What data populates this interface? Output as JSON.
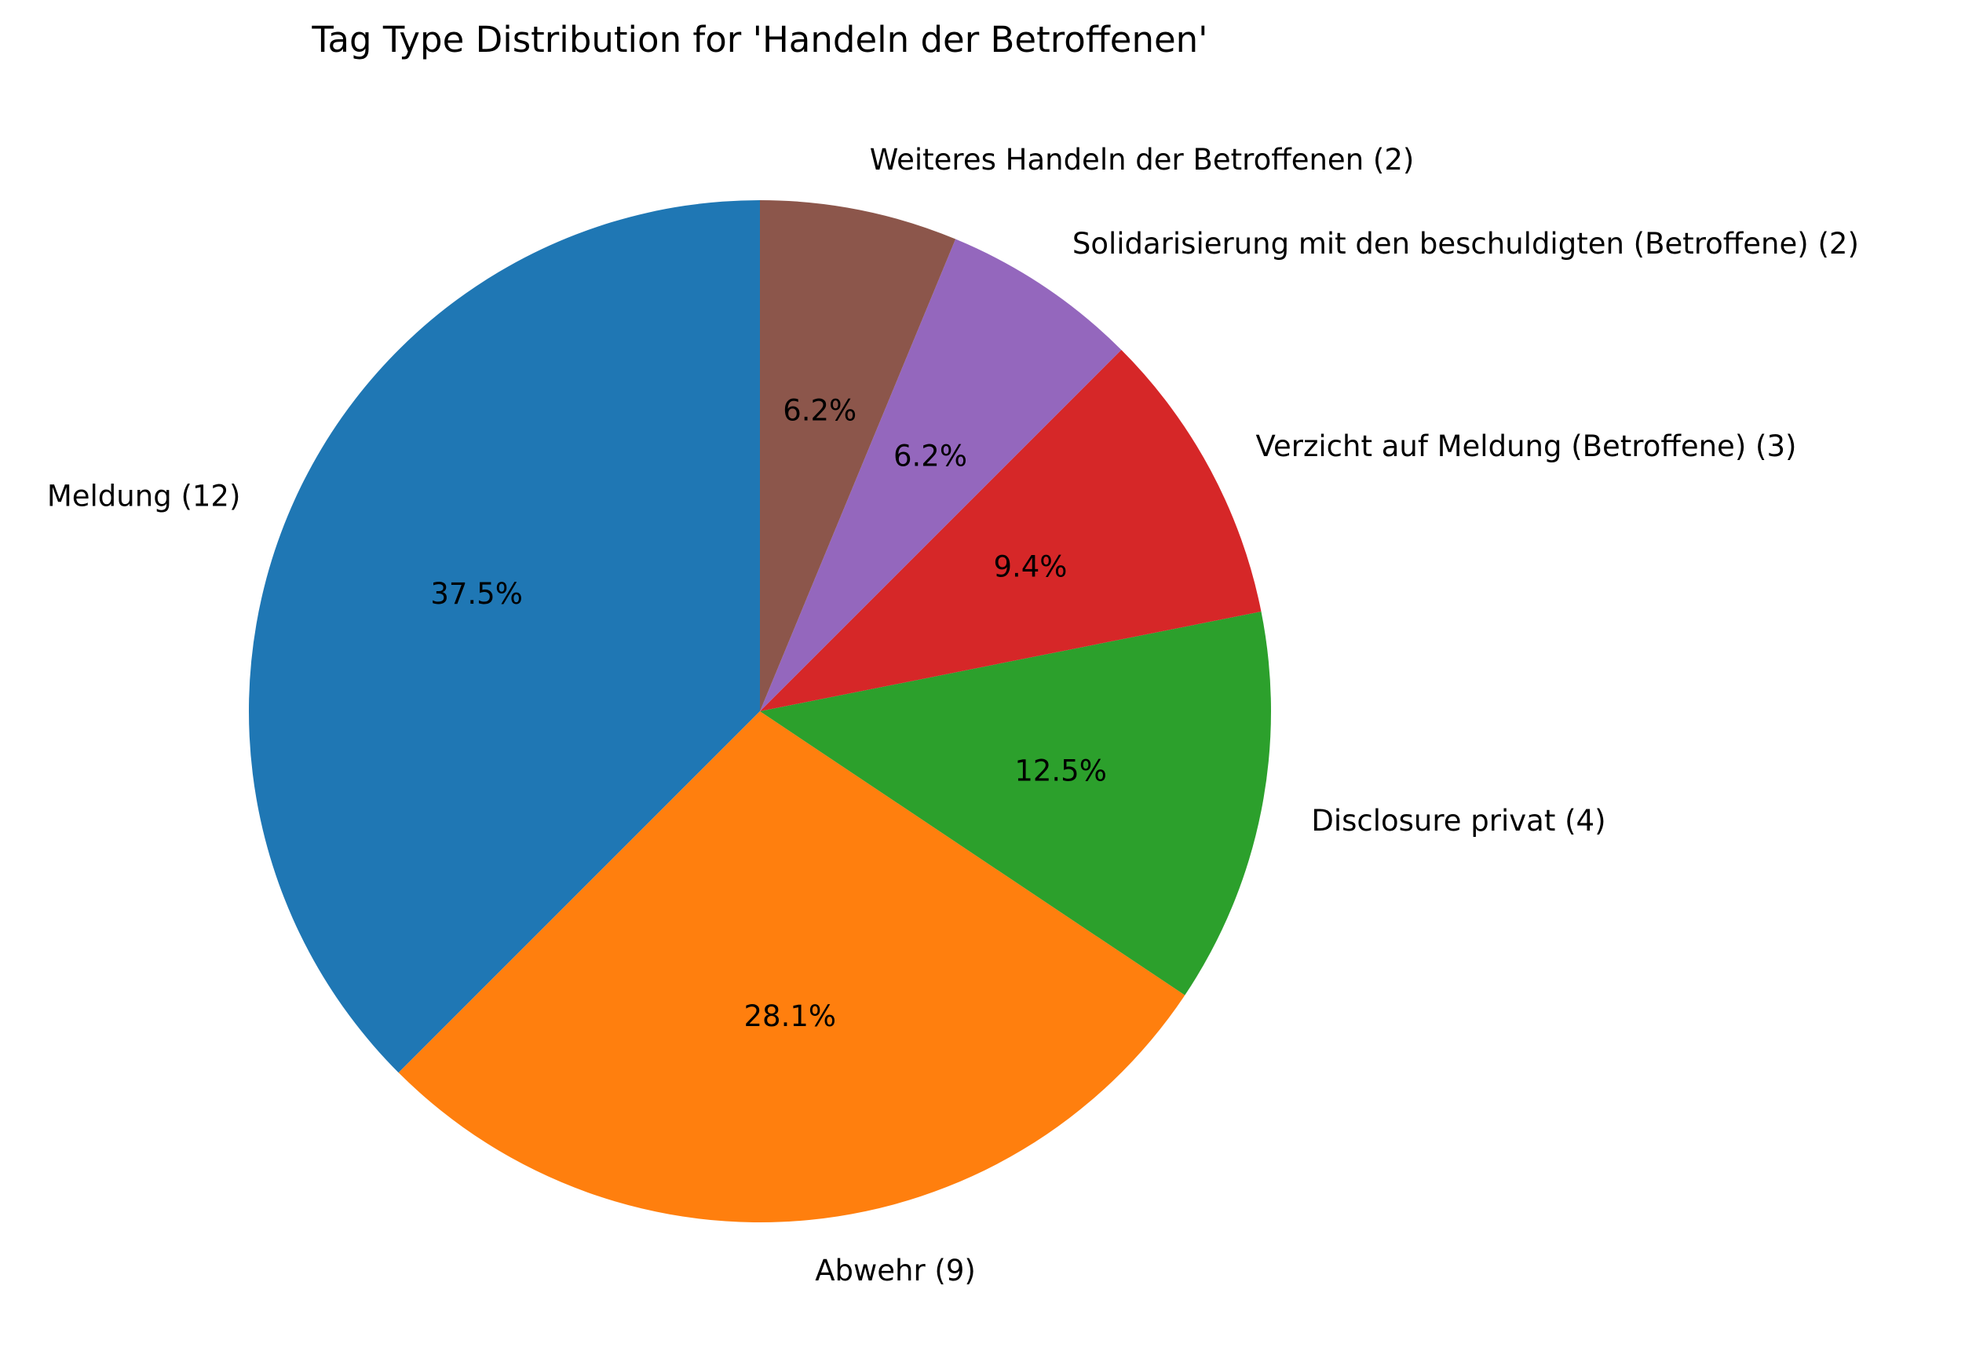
{
  "chart_data": {
    "type": "pie",
    "title": "Tag Type Distribution for 'Handeln der Betroffenen'",
    "slices": [
      {
        "label": "Meldung (12)",
        "value": 12,
        "percent_label": "37.5%",
        "color": "#1f77b4"
      },
      {
        "label": "Abwehr (9)",
        "value": 9,
        "percent_label": "28.1%",
        "color": "#ff7f0e"
      },
      {
        "label": "Disclosure privat (4)",
        "value": 4,
        "percent_label": "12.5%",
        "color": "#2ca02c"
      },
      {
        "label": "Verzicht auf Meldung (Betroffene) (3)",
        "value": 3,
        "percent_label": "9.4%",
        "color": "#d62728"
      },
      {
        "label": "Solidarisierung mit den beschuldigten (Betroffene) (2)",
        "value": 2,
        "percent_label": "6.2%",
        "color": "#9467bd"
      },
      {
        "label": "Weiteres Handeln der Betroffenen (2)",
        "value": 2,
        "percent_label": "6.2%",
        "color": "#8c564b"
      }
    ],
    "start_angle_deg": 90,
    "direction": "counterclockwise"
  }
}
